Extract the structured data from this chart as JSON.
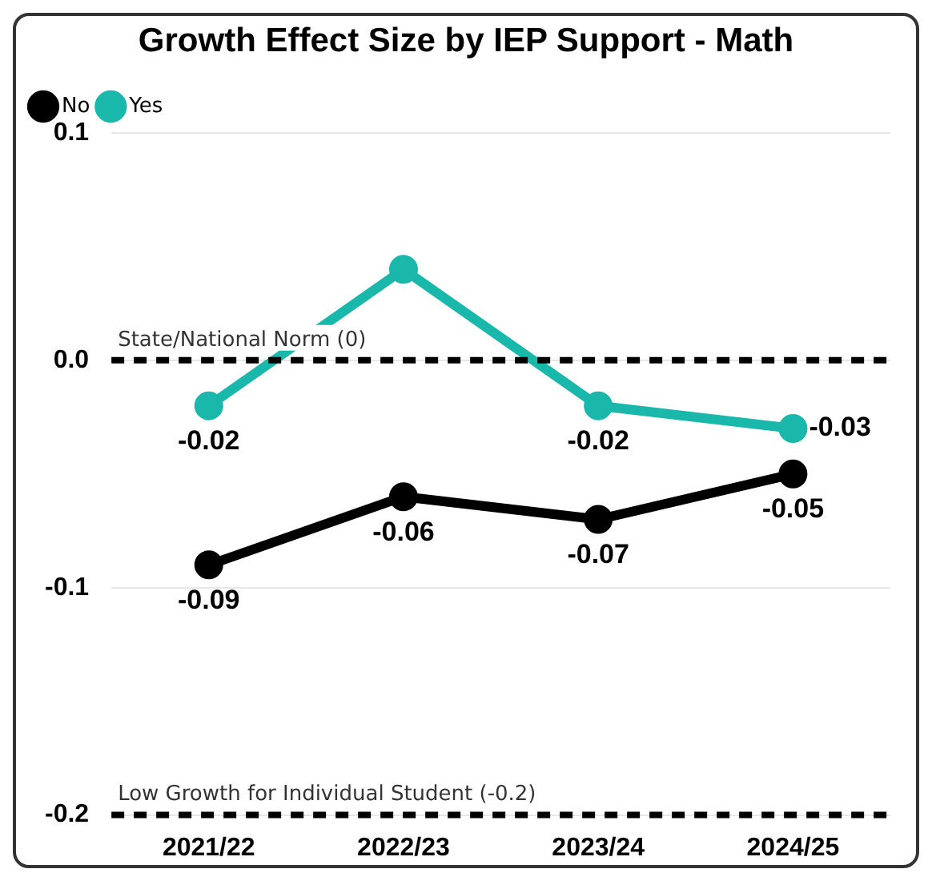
{
  "chart_data": {
    "type": "line",
    "title": "Growth Effect Size by IEP Support - Math",
    "categories": [
      "2021/22",
      "2022/23",
      "2023/24",
      "2024/25"
    ],
    "series": [
      {
        "name": "No",
        "color": "#000000",
        "values": [
          -0.09,
          -0.06,
          -0.07,
          -0.05
        ],
        "value_labels": [
          "-0.09",
          "-0.06",
          "-0.07",
          "-0.05"
        ]
      },
      {
        "name": "Yes",
        "color": "#1ab8aa",
        "values": [
          -0.02,
          0.04,
          -0.02,
          -0.03
        ],
        "value_labels": [
          "-0.02",
          null,
          "-0.02",
          "-0.03"
        ]
      }
    ],
    "ylim": [
      -0.2,
      0.1
    ],
    "yticks": [
      {
        "value": -0.2,
        "label": "-0.2"
      },
      {
        "value": -0.1,
        "label": "-0.1"
      },
      {
        "value": 0,
        "label": "0.0"
      },
      {
        "value": 0.1,
        "label": "0.1"
      }
    ],
    "ref_lines": [
      {
        "axis": "y",
        "value": 0,
        "label": "State/National Norm (0)",
        "color": "#000000",
        "line_style": "dashed"
      },
      {
        "axis": "y",
        "value": -0.2,
        "label": "Low Growth for Individual Student (-0.2)",
        "color": "#000000",
        "line_style": "dashed"
      }
    ],
    "grid": "y",
    "legend": "top left",
    "marker": "circle",
    "line_style": "solid"
  }
}
